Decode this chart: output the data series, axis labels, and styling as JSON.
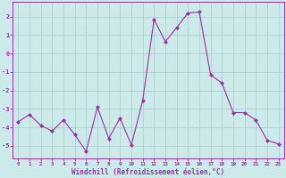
{
  "x": [
    0,
    1,
    2,
    3,
    4,
    5,
    6,
    7,
    8,
    9,
    10,
    11,
    12,
    13,
    14,
    15,
    16,
    17,
    18,
    19,
    20,
    21,
    22,
    23
  ],
  "y": [
    -3.7,
    -3.3,
    -3.9,
    -4.2,
    -3.6,
    -4.4,
    -5.3,
    -2.9,
    -4.6,
    -3.5,
    -4.95,
    -2.55,
    1.85,
    0.65,
    1.4,
    2.2,
    2.25,
    -1.15,
    -1.6,
    -3.2,
    -3.2,
    -3.6,
    -4.7,
    -4.9
  ],
  "line_color": "#9b30a0",
  "marker": "D",
  "marker_size": 2.0,
  "bg_color": "#cceaea",
  "grid_color": "#b0d0d0",
  "xlabel": "Windchill (Refroidissement éolien,°C)",
  "xlabel_color": "#9b30a0",
  "tick_color": "#9b30a0",
  "label_color": "#9b30a0",
  "spine_color": "#9b30a0",
  "ylim": [
    -5.7,
    2.8
  ],
  "xlim": [
    -0.5,
    23.5
  ],
  "yticks": [
    -5,
    -4,
    -3,
    -2,
    -1,
    0,
    1,
    2
  ],
  "xticks": [
    0,
    1,
    2,
    3,
    4,
    5,
    6,
    7,
    8,
    9,
    10,
    11,
    12,
    13,
    14,
    15,
    16,
    17,
    18,
    19,
    20,
    21,
    22,
    23
  ]
}
